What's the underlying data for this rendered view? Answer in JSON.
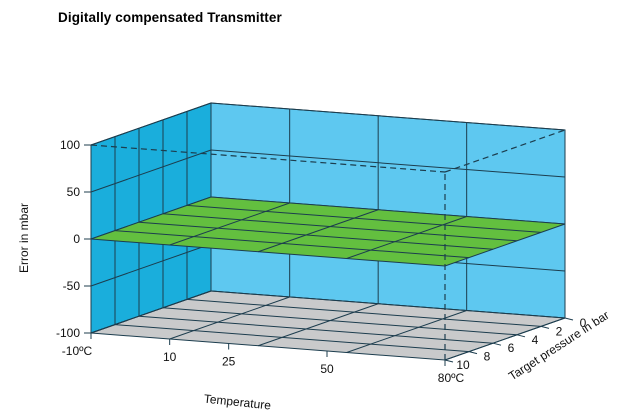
{
  "chart_data": {
    "type": "surface",
    "title": "Digitally compensated Transmitter",
    "ylabel": "Error in mbar",
    "xlabel": "Temperature",
    "zlabel": "Target pressure in bar",
    "yticks": [
      100,
      50,
      0,
      -50,
      -100
    ],
    "ylim": [
      -100,
      100
    ],
    "temperature_ticks": [
      "-10ºC",
      "10",
      "25",
      "50",
      "80ºC"
    ],
    "temperature_values": [
      -10,
      10,
      25,
      50,
      80
    ],
    "pressure_ticks": [
      "0",
      "2",
      "4",
      "6",
      "8",
      "10"
    ],
    "pressure_values": [
      0,
      2,
      4,
      6,
      8,
      10
    ],
    "surface_error_mbar": 0,
    "colors": {
      "back_wall": "#5ec8f0",
      "side_wall": "#1aaedc",
      "floor": "#c9cacb",
      "surface": "#63bf3f",
      "grid": "#1c3d4e"
    }
  }
}
